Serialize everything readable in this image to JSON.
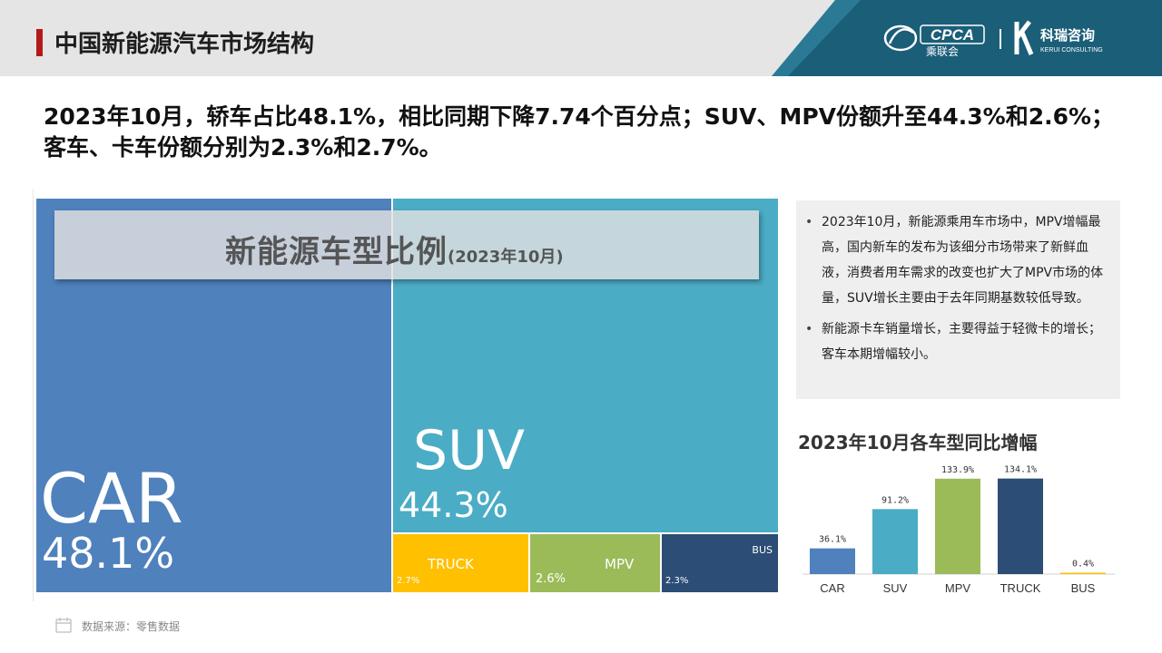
{
  "header": {
    "title": "中国新能源汽车市场结构",
    "logo_cpca_text": "CPCA",
    "logo_cpca_sub": "乘联会",
    "logo_kr_text": "科瑞咨询",
    "logo_kr_sub": "KERUI CONSULTING"
  },
  "headline": {
    "line1": "2023年10月，轿车占比48.1%，相比同期下降7.74个百分点；SUV、MPV份额升至44.3%和2.6%；",
    "line2": "客车、卡车份额分别为2.3%和2.7%。"
  },
  "treemap_title": {
    "main": "新能源车型比例",
    "sub": "(2023年10月)"
  },
  "notes": [
    "2023年10月，新能源乘用车市场中，MPV增幅最高，国内新车的发布为该细分市场带来了新鲜血液，消费者用车需求的改变也扩大了MPV市场的体量，SUV增长主要由于去年同期基数较低导致。",
    "新能源卡车销量增长，主要得益于轻微卡的增长；客车本期增幅较小。"
  ],
  "bar_chart_title": "2023年10月各车型同比增幅",
  "footer": {
    "source": "数据来源：零售数据"
  },
  "chart_data": [
    {
      "type": "treemap",
      "title": "新能源车型比例(2023年10月)",
      "items": [
        {
          "name": "CAR",
          "value": 48.1,
          "label": "48.1%",
          "color": "#4f81bd"
        },
        {
          "name": "SUV",
          "value": 44.3,
          "label": "44.3%",
          "color": "#4bacc6"
        },
        {
          "name": "TRUCK",
          "value": 2.7,
          "label": "2.7%",
          "color": "#ffc000"
        },
        {
          "name": "MPV",
          "value": 2.6,
          "label": "2.6%",
          "color": "#9bbb59"
        },
        {
          "name": "BUS",
          "value": 2.3,
          "label": "2.3%",
          "color": "#2c4d75"
        }
      ]
    },
    {
      "type": "bar",
      "title": "2023年10月各车型同比增幅",
      "categories": [
        "CAR",
        "SUV",
        "MPV",
        "TRUCK",
        "BUS"
      ],
      "values": [
        36.1,
        91.2,
        133.9,
        134.1,
        0.4
      ],
      "labels": [
        "36.1%",
        "91.2%",
        "133.9%",
        "134.1%",
        "0.4%"
      ],
      "colors": [
        "#4f81bd",
        "#4bacc6",
        "#9bbb59",
        "#2c4d75",
        "#ffc000"
      ],
      "ylim": [
        0,
        140
      ],
      "grid": false,
      "legend": "none"
    }
  ],
  "colors": {
    "header_bg": "#e5e5e5",
    "accent_red": "#b31b1b",
    "brand_teal": "#1b5e78"
  }
}
